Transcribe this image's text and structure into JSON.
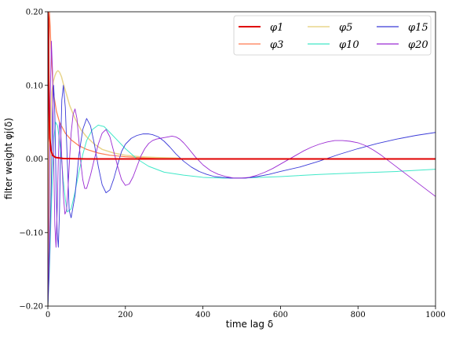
{
  "chart_data": {
    "type": "line",
    "xlabel": "time lag δ",
    "ylabel": "filter weight φj(δ)",
    "xlim": [
      0,
      1000
    ],
    "ylim": [
      -0.2,
      0.2
    ],
    "xticks": [
      0,
      200,
      400,
      600,
      800,
      1000
    ],
    "yticks": [
      -0.2,
      -0.1,
      0.0,
      0.1,
      0.2
    ],
    "xtick_labels": [
      "0",
      "200",
      "400",
      "600",
      "800",
      "1000"
    ],
    "ytick_labels": [
      "−0.20",
      "−0.10",
      "0.00",
      "0.10",
      "0.20"
    ],
    "grid": false,
    "legend_position": "top-right",
    "legend_columns": 3,
    "series": [
      {
        "name": "φ1",
        "color": "#e00000",
        "width": 2.0,
        "x": [
          0,
          1,
          2,
          3,
          5,
          8,
          12,
          20,
          40,
          100,
          200,
          400,
          600,
          800,
          1000
        ],
        "y": [
          0.2,
          0.19,
          0.12,
          0.07,
          0.028,
          0.012,
          0.005,
          0.002,
          0.0005,
          0.0,
          0.0,
          0.0,
          0.0,
          0.0,
          0.0
        ]
      },
      {
        "name": "φ3",
        "color": "#ff7a50",
        "width": 1.2,
        "x": [
          0,
          2,
          4,
          6,
          8,
          12,
          16,
          22,
          30,
          45,
          60,
          80,
          100,
          130,
          160,
          200,
          250,
          300,
          350,
          400,
          600,
          800,
          1000
        ],
        "y": [
          -0.2,
          0.12,
          0.2,
          0.18,
          0.15,
          0.11,
          0.085,
          0.065,
          0.05,
          0.035,
          0.026,
          0.018,
          0.013,
          0.008,
          0.005,
          0.003,
          0.0015,
          0.0008,
          0.0003,
          0.0,
          0.0,
          0.0,
          0.0
        ]
      },
      {
        "name": "φ5",
        "color": "#e8d58c",
        "width": 1.5,
        "x": [
          0,
          2,
          4,
          6,
          8,
          10,
          14,
          18,
          22,
          26,
          30,
          35,
          40,
          48,
          56,
          70,
          85,
          100,
          120,
          140,
          170,
          200,
          240,
          280,
          340
        ],
        "y": [
          -0.2,
          -0.15,
          -0.08,
          0.0,
          0.06,
          0.09,
          0.105,
          0.113,
          0.118,
          0.12,
          0.118,
          0.112,
          0.102,
          0.088,
          0.073,
          0.055,
          0.04,
          0.03,
          0.02,
          0.013,
          0.008,
          0.005,
          0.003,
          0.002,
          0.001
        ]
      },
      {
        "name": "φ10",
        "color": "#40e8c8",
        "width": 1.0,
        "x": [
          0,
          4,
          8,
          12,
          16,
          20,
          25,
          30,
          35,
          40,
          45,
          50,
          60,
          70,
          80,
          90,
          100,
          115,
          130,
          145,
          160,
          180,
          200,
          230,
          260,
          300,
          350,
          400,
          450,
          500,
          600,
          700,
          800,
          900,
          1000
        ],
        "y": [
          -0.2,
          -0.15,
          -0.08,
          -0.02,
          0.03,
          0.05,
          0.045,
          0.025,
          0.0,
          -0.03,
          -0.055,
          -0.072,
          -0.068,
          -0.045,
          -0.018,
          0.006,
          0.025,
          0.04,
          0.046,
          0.044,
          0.036,
          0.025,
          0.014,
          0.0,
          -0.01,
          -0.018,
          -0.022,
          -0.025,
          -0.026,
          -0.026,
          -0.024,
          -0.021,
          -0.019,
          -0.017,
          -0.014
        ]
      },
      {
        "name": "φ15",
        "color": "#3a3ad8",
        "width": 0.9,
        "x": [
          0,
          3,
          6,
          9,
          12,
          15,
          18,
          21,
          24,
          27,
          30,
          33,
          36,
          40,
          45,
          50,
          55,
          60,
          70,
          80,
          90,
          100,
          110,
          120,
          130,
          140,
          150,
          160,
          170,
          180,
          190,
          200,
          215,
          230,
          245,
          260,
          270,
          285,
          300,
          315,
          330,
          350,
          370,
          390,
          410,
          430,
          450,
          470,
          490,
          510,
          540,
          570,
          600,
          650,
          700,
          750,
          800,
          850,
          900,
          950,
          1000
        ],
        "y": [
          -0.2,
          -0.16,
          -0.1,
          -0.03,
          0.06,
          0.1,
          0.06,
          -0.03,
          -0.1,
          -0.12,
          -0.07,
          0.02,
          0.08,
          0.1,
          0.07,
          0.0,
          -0.07,
          -0.08,
          -0.05,
          0.005,
          0.04,
          0.055,
          0.045,
          0.02,
          -0.01,
          -0.035,
          -0.046,
          -0.042,
          -0.027,
          -0.008,
          0.01,
          0.02,
          0.028,
          0.032,
          0.034,
          0.034,
          0.033,
          0.03,
          0.024,
          0.016,
          0.007,
          -0.003,
          -0.011,
          -0.017,
          -0.021,
          -0.024,
          -0.025,
          -0.026,
          -0.026,
          -0.026,
          -0.024,
          -0.021,
          -0.017,
          -0.011,
          -0.003,
          0.006,
          0.014,
          0.021,
          0.027,
          0.032,
          0.036
        ]
      },
      {
        "name": "φ20",
        "color": "#9b2bd3",
        "width": 0.9,
        "x": [
          0,
          3,
          6,
          9,
          12,
          15,
          18,
          21,
          24,
          27,
          30,
          33,
          36,
          40,
          44,
          48,
          52,
          56,
          60,
          65,
          70,
          75,
          80,
          85,
          90,
          95,
          100,
          110,
          120,
          130,
          140,
          150,
          160,
          170,
          180,
          190,
          200,
          210,
          220,
          230,
          240,
          250,
          260,
          270,
          280,
          290,
          300,
          310,
          320,
          330,
          340,
          350,
          360,
          380,
          400,
          420,
          440,
          460,
          480,
          500,
          520,
          540,
          560,
          580,
          600,
          620,
          640,
          660,
          680,
          700,
          720,
          740,
          760,
          780,
          800,
          820,
          840,
          860,
          880,
          900,
          920,
          940,
          960,
          980,
          1000
        ],
        "y": [
          -0.2,
          -0.1,
          0.08,
          0.16,
          0.12,
          0.0,
          -0.09,
          -0.12,
          -0.07,
          0.0,
          0.05,
          0.04,
          0.0,
          -0.05,
          -0.075,
          -0.07,
          -0.04,
          0.0,
          0.035,
          0.06,
          0.068,
          0.055,
          0.025,
          -0.005,
          -0.028,
          -0.04,
          -0.04,
          -0.022,
          0.0,
          0.02,
          0.035,
          0.04,
          0.03,
          0.01,
          -0.01,
          -0.028,
          -0.036,
          -0.034,
          -0.024,
          -0.01,
          0.004,
          0.014,
          0.021,
          0.025,
          0.027,
          0.028,
          0.029,
          0.03,
          0.031,
          0.03,
          0.027,
          0.022,
          0.016,
          0.003,
          -0.008,
          -0.016,
          -0.021,
          -0.024,
          -0.026,
          -0.026,
          -0.025,
          -0.022,
          -0.018,
          -0.013,
          -0.007,
          -0.001,
          0.005,
          0.011,
          0.016,
          0.02,
          0.023,
          0.025,
          0.025,
          0.024,
          0.022,
          0.018,
          0.012,
          0.005,
          -0.003,
          -0.011,
          -0.019,
          -0.027,
          -0.035,
          -0.043,
          -0.051
        ]
      }
    ]
  }
}
